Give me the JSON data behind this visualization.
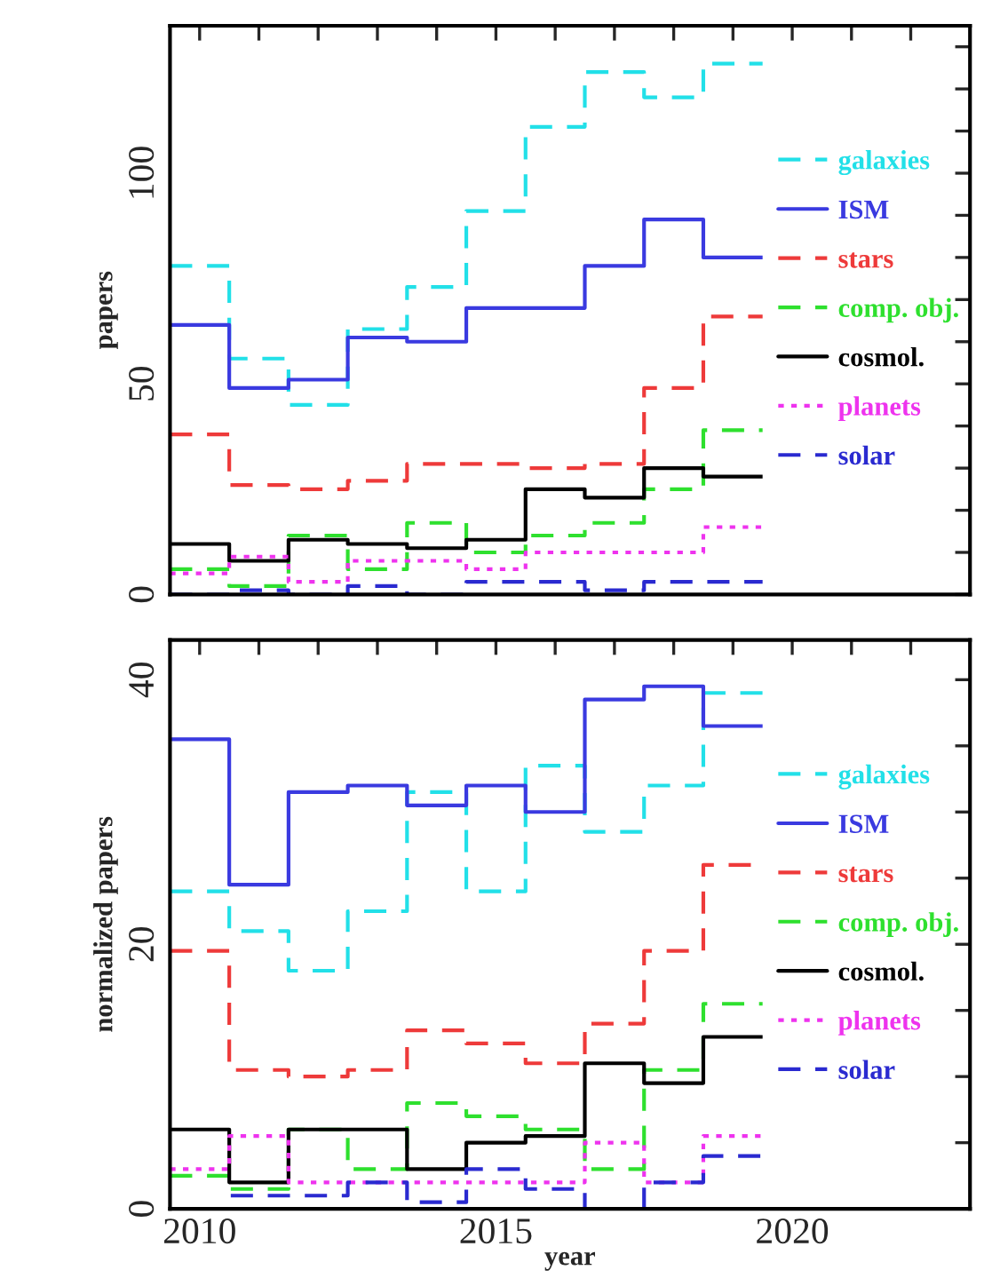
{
  "chart_data": [
    {
      "type": "histogram",
      "ylabel": "papers",
      "bins": [
        2009.5,
        2010.5,
        2011.5,
        2012.5,
        2013.5,
        2014.5,
        2015.5,
        2016.5,
        2017.5,
        2018.5,
        2019.5
      ],
      "xlim": [
        2009.5,
        2023
      ],
      "xticks": [
        {
          "value": 2010,
          "label": null
        },
        {
          "value": 2011,
          "label": null
        },
        {
          "value": 2012,
          "label": null
        },
        {
          "value": 2013,
          "label": null
        },
        {
          "value": 2014,
          "label": null
        },
        {
          "value": 2015,
          "label": null
        },
        {
          "value": 2016,
          "label": null
        },
        {
          "value": 2017,
          "label": null
        },
        {
          "value": 2018,
          "label": null
        },
        {
          "value": 2019,
          "label": null
        },
        {
          "value": 2020,
          "label": null
        },
        {
          "value": 2021,
          "label": null
        },
        {
          "value": 2022,
          "label": null
        }
      ],
      "ylim": [
        0,
        135
      ],
      "yticks": [
        0,
        {
          "value": 10,
          "label": null
        },
        {
          "value": 20,
          "label": null
        },
        {
          "value": 30,
          "label": null
        },
        {
          "value": 40,
          "label": null
        },
        50,
        {
          "value": 60,
          "label": null
        },
        {
          "value": 70,
          "label": null
        },
        {
          "value": 80,
          "label": null
        },
        {
          "value": 90,
          "label": null
        },
        100,
        {
          "value": 110,
          "label": null
        },
        {
          "value": 120,
          "label": null
        },
        {
          "value": 130,
          "label": null
        }
      ],
      "tick_labels": "y",
      "legend": "right",
      "grid": false,
      "series": [
        {
          "name": "galaxies",
          "color": "#22e0e8",
          "line_style": "dashed",
          "values": [
            78,
            56,
            45,
            63,
            73,
            91,
            111,
            124,
            118,
            126
          ]
        },
        {
          "name": "ISM",
          "color": "#3a3ae0",
          "line_style": "solid",
          "values": [
            64,
            49,
            51,
            61,
            60,
            68,
            68,
            78,
            89,
            80
          ]
        },
        {
          "name": "stars",
          "color": "#ee3a3a",
          "line_style": "dashed",
          "values": [
            38,
            26,
            25,
            27,
            31,
            31,
            30,
            31,
            49,
            66
          ]
        },
        {
          "name": "comp. obj.",
          "color": "#2ee02e",
          "line_style": "dashed",
          "values": [
            6,
            2,
            14,
            6,
            17,
            10,
            14,
            17,
            25,
            39
          ]
        },
        {
          "name": "cosmol.",
          "color": "#000000",
          "line_style": "solid",
          "values": [
            12,
            8,
            13,
            12,
            11,
            13,
            25,
            23,
            30,
            28
          ]
        },
        {
          "name": "planets",
          "color": "#ee33ee",
          "line_style": "dotted",
          "values": [
            5,
            9,
            3,
            8,
            8,
            6,
            10,
            10,
            10,
            16
          ]
        },
        {
          "name": "solar",
          "color": "#2a2ad0",
          "line_style": "dashed",
          "values": [
            0,
            1,
            0,
            2,
            0,
            3,
            3,
            1,
            3,
            3
          ]
        }
      ]
    },
    {
      "type": "histogram",
      "ylabel": "normalized papers",
      "xlabel": "year",
      "bins": [
        2009.5,
        2010.5,
        2011.5,
        2012.5,
        2013.5,
        2014.5,
        2015.5,
        2016.5,
        2017.5,
        2018.5,
        2019.5
      ],
      "xlim": [
        2009.5,
        2023
      ],
      "xticks": [
        2010,
        {
          "value": 2011,
          "label": null
        },
        {
          "value": 2012,
          "label": null
        },
        {
          "value": 2013,
          "label": null
        },
        {
          "value": 2014,
          "label": null
        },
        2015,
        {
          "value": 2016,
          "label": null
        },
        {
          "value": 2017,
          "label": null
        },
        {
          "value": 2018,
          "label": null
        },
        {
          "value": 2019,
          "label": null
        },
        2020,
        {
          "value": 2021,
          "label": null
        },
        {
          "value": 2022,
          "label": null
        }
      ],
      "ylim": [
        0,
        43
      ],
      "yticks": [
        0,
        {
          "value": 5,
          "label": null
        },
        {
          "value": 10,
          "label": null
        },
        {
          "value": 15,
          "label": null
        },
        20,
        {
          "value": 25,
          "label": null
        },
        {
          "value": 30,
          "label": null
        },
        {
          "value": 35,
          "label": null
        },
        40
      ],
      "legend": "right",
      "grid": false,
      "series": [
        {
          "name": "galaxies",
          "color": "#22e0e8",
          "line_style": "dashed",
          "values": [
            24,
            21,
            18,
            22.5,
            31.5,
            24,
            33.5,
            28.5,
            32,
            39
          ]
        },
        {
          "name": "ISM",
          "color": "#3a3ae0",
          "line_style": "solid",
          "values": [
            35.5,
            24.5,
            31.5,
            32,
            30.5,
            32,
            30,
            38.5,
            39.5,
            36.5
          ]
        },
        {
          "name": "stars",
          "color": "#ee3a3a",
          "line_style": "dashed",
          "values": [
            19.5,
            10.5,
            10,
            10.5,
            13.5,
            12.5,
            11,
            14,
            19.5,
            26
          ]
        },
        {
          "name": "comp. obj.",
          "color": "#2ee02e",
          "line_style": "dashed",
          "values": [
            2.5,
            1.5,
            6,
            3,
            8,
            7,
            6,
            3,
            10.5,
            15.5
          ]
        },
        {
          "name": "cosmol.",
          "color": "#000000",
          "line_style": "solid",
          "values": [
            6,
            2,
            6,
            6,
            3,
            5,
            5.5,
            11,
            9.5,
            13
          ]
        },
        {
          "name": "planets",
          "color": "#ee33ee",
          "line_style": "dotted",
          "values": [
            3,
            5.5,
            2,
            2,
            2,
            2,
            2,
            5,
            2,
            5.5
          ]
        },
        {
          "name": "solar",
          "color": "#2a2ad0",
          "line_style": "dashed",
          "values": [
            0,
            1,
            1,
            2,
            0.5,
            3,
            1.5,
            0,
            2,
            4
          ]
        }
      ]
    }
  ]
}
